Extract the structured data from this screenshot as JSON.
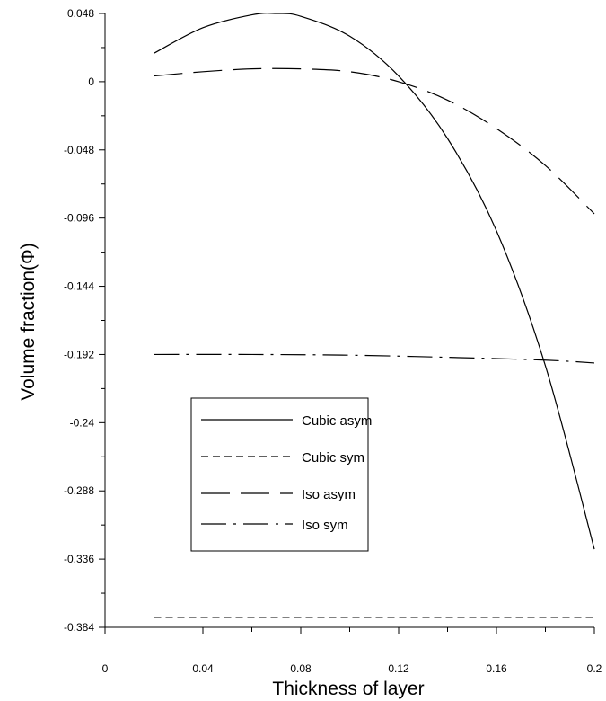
{
  "chart_data": {
    "type": "line",
    "xlabel": "Thickness of layer",
    "ylabel": "Volume fraction(Φ)",
    "xlim": [
      0,
      0.2
    ],
    "ylim": [
      -0.384,
      0.048
    ],
    "x_ticks": [
      "0",
      "0.04",
      "0.08",
      "0.12",
      "0.16",
      "0.2"
    ],
    "y_ticks": [
      "0.048",
      "0",
      "-0.048",
      "-0.096",
      "-0.144",
      "-0.192",
      "-0.24",
      "-0.288",
      "-0.336",
      "-0.384"
    ],
    "grid": false,
    "legend_position": "lower-left",
    "series": [
      {
        "name": "Cubic asym",
        "style": "solid",
        "x": [
          0.02,
          0.04,
          0.06,
          0.07,
          0.08,
          0.1,
          0.12,
          0.14,
          0.16,
          0.18,
          0.2
        ],
        "y": [
          0.02,
          0.038,
          0.047,
          0.048,
          0.046,
          0.032,
          0.004,
          -0.04,
          -0.105,
          -0.2,
          -0.329
        ]
      },
      {
        "name": "Cubic sym",
        "style": "short-dash",
        "x": [
          0.02,
          0.2
        ],
        "y": [
          -0.377,
          -0.377
        ]
      },
      {
        "name": "Iso asym",
        "style": "long-dash",
        "x": [
          0.02,
          0.04,
          0.06,
          0.08,
          0.1,
          0.12,
          0.14,
          0.16,
          0.18,
          0.2
        ],
        "y": [
          0.004,
          0.007,
          0.009,
          0.009,
          0.007,
          0.0,
          -0.013,
          -0.033,
          -0.059,
          -0.093
        ]
      },
      {
        "name": "Iso sym",
        "style": "dash-dot",
        "x": [
          0.02,
          0.06,
          0.1,
          0.14,
          0.18,
          0.2
        ],
        "y": [
          -0.192,
          -0.192,
          -0.1925,
          -0.194,
          -0.196,
          -0.198
        ]
      }
    ]
  }
}
